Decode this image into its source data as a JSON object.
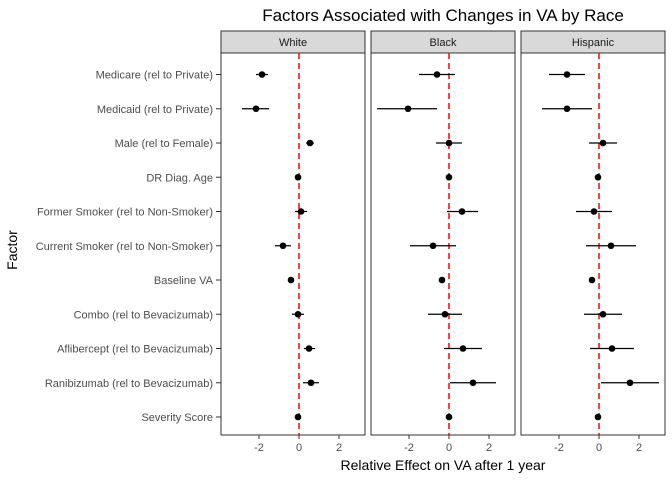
{
  "chart_data": {
    "type": "scatter",
    "title": "Factors Associated with Changes in VA by Race",
    "xlabel": "Relative Effect on VA after 1 year",
    "ylabel": "Factor",
    "xlim": [
      -3.9,
      3.3
    ],
    "x_ticks": [
      -2,
      0,
      2
    ],
    "x_tick_labels": [
      "-2",
      "0",
      "2"
    ],
    "reference_line": {
      "x": 0,
      "color": "#ff0000",
      "style": "dashed"
    },
    "grid": false,
    "categories": [
      "Medicare (rel to Private)",
      "Medicaid (rel to Private)",
      "Male (rel to Female)",
      "DR Diag. Age",
      "Former Smoker (rel to Non-Smoker)",
      "Current Smoker (rel to Non-Smoker)",
      "Baseline VA",
      "Combo (rel to Bevacizumab)",
      "Aflibercept (rel to Bevacizumab)",
      "Ranibizumab (rel to Bevacizumab)",
      "Severity Score"
    ],
    "panels": [
      {
        "name": "White",
        "estimates": [
          -1.85,
          -2.15,
          0.55,
          -0.05,
          0.1,
          -0.8,
          -0.4,
          -0.05,
          0.5,
          0.6,
          -0.05
        ],
        "lower": [
          -2.15,
          -2.85,
          0.35,
          -0.15,
          -0.2,
          -1.2,
          -0.45,
          -0.35,
          0.25,
          0.2,
          -0.12
        ],
        "upper": [
          -1.55,
          -1.5,
          0.75,
          0.05,
          0.4,
          -0.4,
          -0.35,
          0.25,
          0.8,
          1.0,
          0.02
        ]
      },
      {
        "name": "Black",
        "estimates": [
          -0.6,
          -2.05,
          0.0,
          0.0,
          0.65,
          -0.8,
          -0.35,
          -0.2,
          0.7,
          1.2,
          0.0
        ],
        "lower": [
          -1.5,
          -3.6,
          -0.65,
          -0.1,
          -0.1,
          -1.95,
          -0.45,
          -1.05,
          -0.25,
          0.05,
          -0.1
        ],
        "upper": [
          0.3,
          -0.6,
          0.65,
          0.1,
          1.45,
          0.35,
          -0.25,
          0.65,
          1.65,
          2.35,
          0.1
        ]
      },
      {
        "name": "Hispanic",
        "estimates": [
          -1.6,
          -1.6,
          0.2,
          -0.05,
          -0.25,
          0.6,
          -0.35,
          0.2,
          0.65,
          1.55,
          -0.05
        ],
        "lower": [
          -2.5,
          -2.85,
          -0.5,
          -0.15,
          -1.15,
          -0.65,
          -0.45,
          -0.75,
          -0.45,
          0.1,
          -0.15
        ],
        "upper": [
          -0.7,
          -0.35,
          0.9,
          0.05,
          0.65,
          1.85,
          -0.25,
          1.15,
          1.75,
          3.0,
          0.05
        ]
      }
    ]
  }
}
